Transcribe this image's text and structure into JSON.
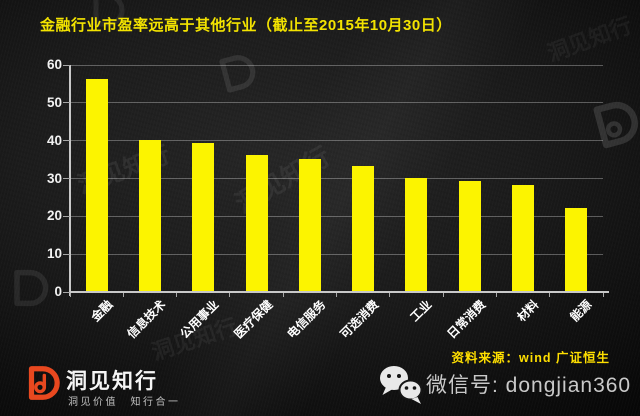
{
  "title": "金融行业市盈率远高于其他行业（截止至2015年10月30日）",
  "chart_data": {
    "type": "bar",
    "title": "金融行业市盈率远高于其他行业（截止至2015年10月30日）",
    "categories": [
      "金融",
      "信息技术",
      "公用事业",
      "医疗保健",
      "电信服务",
      "可选消费",
      "工业",
      "日常消费",
      "材料",
      "能源"
    ],
    "values": [
      56,
      40,
      39,
      36,
      35,
      33,
      30,
      29,
      28,
      22
    ],
    "xlabel": "",
    "ylabel": "",
    "ylim": [
      0,
      60
    ],
    "yticks": [
      0,
      10,
      20,
      30,
      40,
      50,
      60
    ],
    "grid": true,
    "legend_position": "none",
    "bar_color": "#fcf400",
    "x_tick_label_rotation": -45
  },
  "source_note": "资料来源：wind 广证恒生",
  "footer": {
    "brand_name": "洞见知行",
    "brand_tagline": "洞见价值　知行合一",
    "wechat_label": "微信号: dongjian360"
  },
  "watermark_text": "洞见知行",
  "colors": {
    "background": "#1a1a1a",
    "bar": "#fcf400",
    "title": "#f3e300",
    "source_note": "#ffdf00",
    "axis": "#c9c9c9",
    "gridline": "#565656",
    "tick_label": "#f2f2f2",
    "brand_orange": "#e8481f",
    "wechat_text": "#c9c9c9"
  }
}
